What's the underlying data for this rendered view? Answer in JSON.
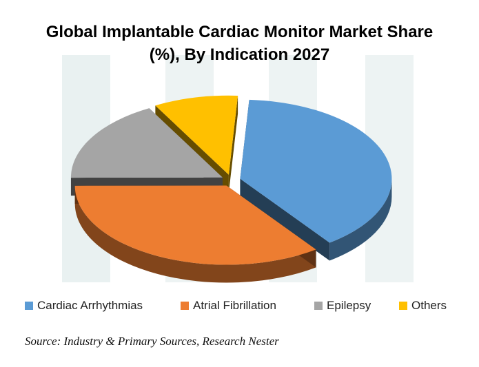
{
  "chart_data": {
    "type": "pie",
    "title": [
      "Global Implantable Cardiac Monitor Market Share",
      "(%), By Indication 2027"
    ],
    "categories": [
      "Cardiac Arrhythmias",
      "Atrial Fibrillation",
      "Epilepsy",
      "Others"
    ],
    "values": [
      39,
      35,
      17,
      9
    ],
    "colors": [
      "#5B9BD5",
      "#ED7D31",
      "#A5A5A5",
      "#FFC000"
    ],
    "legend_position": "bottom"
  },
  "source": "Source: Industry & Primary Sources, Research Nester"
}
